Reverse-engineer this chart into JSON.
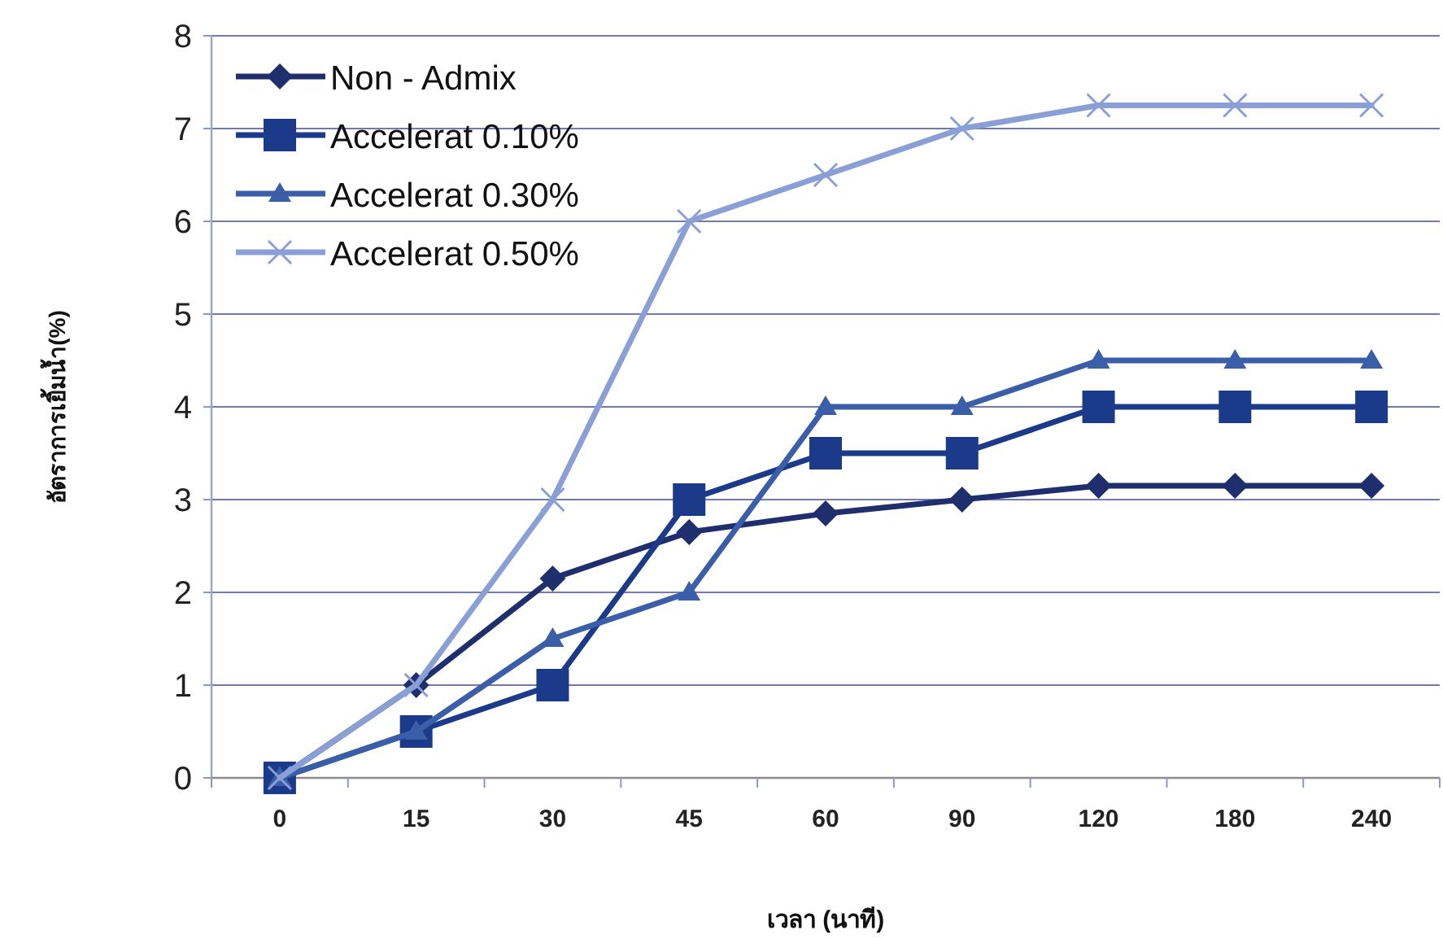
{
  "chart_data": {
    "type": "line",
    "xlabel": "เวลา (นาที)",
    "ylabel": "อัตราการเยิ้มน้ำ(%)",
    "categories": [
      "0",
      "15",
      "30",
      "45",
      "60",
      "90",
      "120",
      "180",
      "240"
    ],
    "ylim": [
      0,
      8
    ],
    "yticks": [
      0,
      1,
      2,
      3,
      4,
      5,
      6,
      7,
      8
    ],
    "grid": "y",
    "legend": "top left",
    "series": [
      {
        "name": "Non - Admix",
        "color": "#1f2f6e",
        "marker": "diamond",
        "values": [
          0,
          1,
          2.15,
          2.65,
          2.85,
          3,
          3.15,
          3.15,
          3.15
        ]
      },
      {
        "name": "Accelerat 0.10%",
        "color": "#1c3a8a",
        "marker": "square",
        "values": [
          0,
          0.5,
          1,
          3,
          3.5,
          3.5,
          4,
          4,
          4
        ]
      },
      {
        "name": "Accelerat 0.30%",
        "color": "#3a5ea8",
        "marker": "triangle",
        "values": [
          0,
          0.5,
          1.5,
          2,
          4,
          4,
          4.5,
          4.5,
          4.5
        ]
      },
      {
        "name": "Accelerat 0.50%",
        "color": "#8a9fd6",
        "marker": "cross",
        "values": [
          0,
          1,
          3,
          6,
          6.5,
          7,
          7.25,
          7.25,
          7.25
        ]
      }
    ]
  }
}
